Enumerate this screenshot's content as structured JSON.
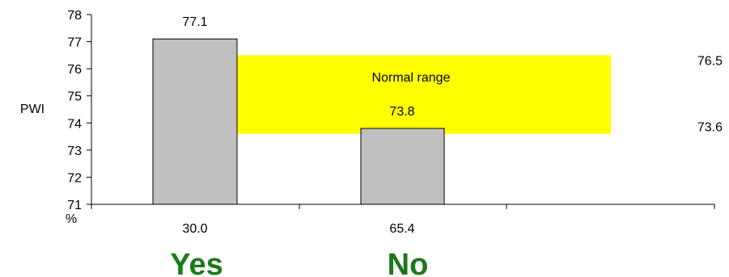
{
  "chart_data": {
    "type": "bar",
    "categories": [
      "Yes",
      "No"
    ],
    "values": [
      77.1,
      73.8
    ],
    "category_percentages": [
      "30.0",
      "65.4"
    ],
    "value_labels": [
      "77.1",
      "73.8"
    ],
    "ylabel": "PWI",
    "x_unit_label": "%",
    "ylim": [
      71,
      78
    ],
    "y_ticks": [
      "71",
      "72",
      "73",
      "74",
      "75",
      "76",
      "77",
      "78"
    ],
    "grid": false,
    "normal_range": {
      "label": "Normal range",
      "low": 73.6,
      "high": 76.5,
      "low_label": "73.6",
      "high_label": "76.5",
      "color": "#ffff00"
    },
    "bar_color": "#c0c0c0",
    "category_label_color": "#1a7a1a"
  }
}
